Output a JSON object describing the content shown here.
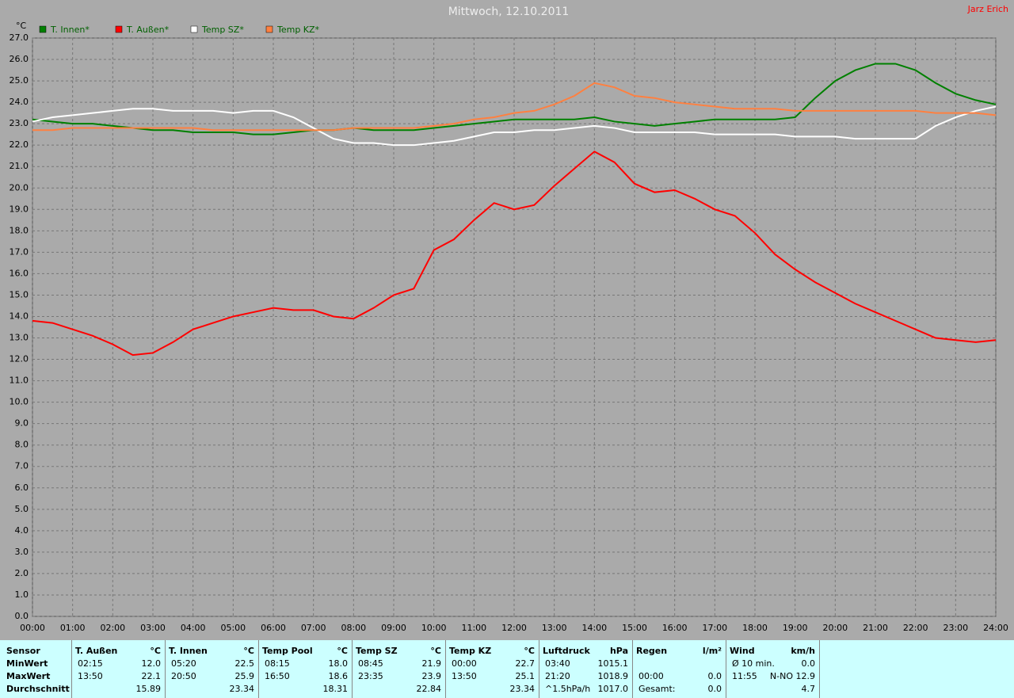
{
  "chart_data": {
    "type": "line",
    "title": "Mittwoch, 12.10.2011",
    "y_label": "°C",
    "x": [
      0,
      0.5,
      1,
      1.5,
      2,
      2.5,
      3,
      3.5,
      4,
      4.5,
      5,
      5.5,
      6,
      6.5,
      7,
      7.5,
      8,
      8.5,
      9,
      9.5,
      10,
      10.5,
      11,
      11.5,
      12,
      12.5,
      13,
      13.5,
      14,
      14.5,
      15,
      15.5,
      16,
      16.5,
      17,
      17.5,
      18,
      18.5,
      19,
      19.5,
      20,
      20.5,
      21,
      21.5,
      22,
      22.5,
      23,
      23.5,
      24
    ],
    "xlim": [
      0,
      24
    ],
    "xticks": [
      {
        "value": 0,
        "label": "00:00"
      },
      {
        "value": 1,
        "label": "01:00"
      },
      {
        "value": 2,
        "label": "02:00"
      },
      {
        "value": 3,
        "label": "03:00"
      },
      {
        "value": 4,
        "label": "04:00"
      },
      {
        "value": 5,
        "label": "05:00"
      },
      {
        "value": 6,
        "label": "06:00"
      },
      {
        "value": 7,
        "label": "07:00"
      },
      {
        "value": 8,
        "label": "08:00"
      },
      {
        "value": 9,
        "label": "09:00"
      },
      {
        "value": 10,
        "label": "10:00"
      },
      {
        "value": 11,
        "label": "11:00"
      },
      {
        "value": 12,
        "label": "12:00"
      },
      {
        "value": 13,
        "label": "13:00"
      },
      {
        "value": 14,
        "label": "14:00"
      },
      {
        "value": 15,
        "label": "15:00"
      },
      {
        "value": 16,
        "label": "16:00"
      },
      {
        "value": 17,
        "label": "17:00"
      },
      {
        "value": 18,
        "label": "18:00"
      },
      {
        "value": 19,
        "label": "19:00"
      },
      {
        "value": 20,
        "label": "20:00"
      },
      {
        "value": 21,
        "label": "21:00"
      },
      {
        "value": 22,
        "label": "22:00"
      },
      {
        "value": 23,
        "label": "23:00"
      },
      {
        "value": 24,
        "label": "24:00"
      }
    ],
    "ylim": [
      0,
      27
    ],
    "yticks": [
      {
        "value": 0,
        "label": "0.0"
      },
      {
        "value": 1,
        "label": "1.0"
      },
      {
        "value": 2,
        "label": "2.0"
      },
      {
        "value": 3,
        "label": "3.0"
      },
      {
        "value": 4,
        "label": "4.0"
      },
      {
        "value": 5,
        "label": "5.0"
      },
      {
        "value": 6,
        "label": "6.0"
      },
      {
        "value": 7,
        "label": "7.0"
      },
      {
        "value": 8,
        "label": "8.0"
      },
      {
        "value": 9,
        "label": "9.0"
      },
      {
        "value": 10,
        "label": "10.0"
      },
      {
        "value": 11,
        "label": "11.0"
      },
      {
        "value": 12,
        "label": "12.0"
      },
      {
        "value": 13,
        "label": "13.0"
      },
      {
        "value": 14,
        "label": "14.0"
      },
      {
        "value": 15,
        "label": "15.0"
      },
      {
        "value": 16,
        "label": "16.0"
      },
      {
        "value": 17,
        "label": "17.0"
      },
      {
        "value": 18,
        "label": "18.0"
      },
      {
        "value": 19,
        "label": "19.0"
      },
      {
        "value": 20,
        "label": "20.0"
      },
      {
        "value": 21,
        "label": "21.0"
      },
      {
        "value": 22,
        "label": "22.0"
      },
      {
        "value": 23,
        "label": "23.0"
      },
      {
        "value": 24,
        "label": "24.0"
      },
      {
        "value": 25,
        "label": "25.0"
      },
      {
        "value": 26,
        "label": "26.0"
      },
      {
        "value": 27,
        "label": "27.0"
      }
    ],
    "grid": true,
    "series": [
      {
        "name": "T. Innen*",
        "color": "#008000",
        "values": [
          23.2,
          23.1,
          23.0,
          23.0,
          22.9,
          22.8,
          22.7,
          22.7,
          22.6,
          22.6,
          22.6,
          22.5,
          22.5,
          22.6,
          22.7,
          22.7,
          22.8,
          22.7,
          22.7,
          22.7,
          22.8,
          22.9,
          23.0,
          23.1,
          23.2,
          23.2,
          23.2,
          23.2,
          23.3,
          23.1,
          23.0,
          22.9,
          23.0,
          23.1,
          23.2,
          23.2,
          23.2,
          23.2,
          23.3,
          24.2,
          25.0,
          25.5,
          25.8,
          25.8,
          25.5,
          24.9,
          24.4,
          24.1,
          23.9
        ]
      },
      {
        "name": "T. Außen*",
        "color": "#ff0000",
        "values": [
          13.8,
          13.7,
          13.4,
          13.1,
          12.7,
          12.2,
          12.3,
          12.8,
          13.4,
          13.7,
          14.0,
          14.2,
          14.4,
          14.3,
          14.3,
          14.0,
          13.9,
          14.4,
          15.0,
          15.3,
          17.1,
          17.6,
          18.5,
          19.3,
          19.0,
          19.2,
          20.1,
          20.9,
          21.7,
          21.2,
          20.2,
          19.8,
          19.9,
          19.5,
          19.0,
          18.7,
          17.9,
          16.9,
          16.2,
          15.6,
          15.1,
          14.6,
          14.2,
          13.8,
          13.4,
          13.0,
          12.9,
          12.8,
          12.9
        ]
      },
      {
        "name": "Temp SZ*",
        "color": "#ffffff",
        "values": [
          23.1,
          23.3,
          23.4,
          23.5,
          23.6,
          23.7,
          23.7,
          23.6,
          23.6,
          23.6,
          23.5,
          23.6,
          23.6,
          23.3,
          22.8,
          22.3,
          22.1,
          22.1,
          22.0,
          22.0,
          22.1,
          22.2,
          22.4,
          22.6,
          22.6,
          22.7,
          22.7,
          22.8,
          22.9,
          22.8,
          22.6,
          22.6,
          22.6,
          22.6,
          22.5,
          22.5,
          22.5,
          22.5,
          22.4,
          22.4,
          22.4,
          22.3,
          22.3,
          22.3,
          22.3,
          22.9,
          23.3,
          23.6,
          23.8
        ]
      },
      {
        "name": "Temp KZ*",
        "color": "#ff8040",
        "values": [
          22.7,
          22.7,
          22.8,
          22.8,
          22.8,
          22.8,
          22.8,
          22.8,
          22.8,
          22.7,
          22.7,
          22.7,
          22.7,
          22.7,
          22.7,
          22.7,
          22.8,
          22.8,
          22.8,
          22.8,
          22.9,
          23.0,
          23.2,
          23.3,
          23.5,
          23.6,
          23.9,
          24.3,
          24.9,
          24.7,
          24.3,
          24.2,
          24.0,
          23.9,
          23.8,
          23.7,
          23.7,
          23.7,
          23.6,
          23.6,
          23.6,
          23.6,
          23.6,
          23.6,
          23.6,
          23.5,
          23.5,
          23.5,
          23.4
        ]
      }
    ]
  },
  "author": "Jarz Erich",
  "table": {
    "header_label": "Sensor",
    "row_labels": [
      "MinWert",
      "MaxWert",
      "Durchschnitt"
    ],
    "blocks": [
      {
        "name": "T. Außen",
        "unit": "°C",
        "rows": [
          [
            "02:15",
            "12.0"
          ],
          [
            "13:50",
            "22.1"
          ],
          [
            null,
            "15.89"
          ]
        ]
      },
      {
        "name": "T. Innen",
        "unit": "°C",
        "rows": [
          [
            "05:20",
            "22.5"
          ],
          [
            "20:50",
            "25.9"
          ],
          [
            null,
            "23.34"
          ]
        ]
      },
      {
        "name": "Temp Pool",
        "unit": "°C",
        "rows": [
          [
            "08:15",
            "18.0"
          ],
          [
            "16:50",
            "18.6"
          ],
          [
            null,
            "18.31"
          ]
        ]
      },
      {
        "name": "Temp SZ",
        "unit": "°C",
        "rows": [
          [
            "08:45",
            "21.9"
          ],
          [
            "23:35",
            "23.9"
          ],
          [
            null,
            "22.84"
          ]
        ]
      },
      {
        "name": "Temp KZ",
        "unit": "°C",
        "rows": [
          [
            "00:00",
            "22.7"
          ],
          [
            "13:50",
            "25.1"
          ],
          [
            null,
            "23.34"
          ]
        ]
      },
      {
        "name": "Luftdruck",
        "unit": "hPa",
        "rows": [
          [
            "03:40",
            "1015.1"
          ],
          [
            "21:20",
            "1018.9"
          ],
          [
            "^1.5hPa/h",
            "1017.0"
          ]
        ]
      },
      {
        "name": "Regen",
        "unit": "l/m²",
        "rows": [
          [
            null,
            null
          ],
          [
            "00:00",
            "0.0"
          ],
          [
            "Gesamt:",
            "0.0"
          ]
        ]
      },
      {
        "name": "Wind",
        "unit": "km/h",
        "rows": [
          [
            "Ø 10 min.",
            "0.0"
          ],
          [
            "11:55",
            "N-NO 12.9"
          ],
          [
            null,
            "4.7"
          ]
        ]
      }
    ]
  }
}
